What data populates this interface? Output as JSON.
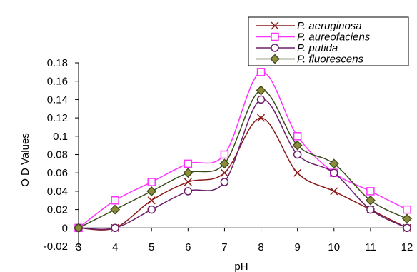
{
  "chart_data": {
    "type": "line",
    "title": "",
    "xlabel": "pH",
    "ylabel": "O D Values",
    "x": [
      3,
      4,
      5,
      6,
      7,
      8,
      9,
      10,
      11,
      12
    ],
    "xlim": [
      3,
      12
    ],
    "ylim": [
      -0.02,
      0.18
    ],
    "yticks": [
      "-0.02",
      "0",
      "0.02",
      "0.04",
      "0.06",
      "0.08",
      "0.1",
      "0.12",
      "0.14",
      "0.16",
      "0.18"
    ],
    "xticks": [
      "3",
      "4",
      "5",
      "6",
      "7",
      "8",
      "9",
      "10",
      "11",
      "12"
    ],
    "grid": false,
    "legend_position": "top-right",
    "series": [
      {
        "name": "P. aeruginosa",
        "marker": "x",
        "color": "#8B1A1A",
        "values": [
          0,
          0,
          0.03,
          0.05,
          0.06,
          0.12,
          0.06,
          0.04,
          0.02,
          0
        ]
      },
      {
        "name": "P. aureofaciens",
        "marker": "square",
        "color": "#FF33FF",
        "values": [
          0,
          0.03,
          0.05,
          0.07,
          0.08,
          0.17,
          0.1,
          0.06,
          0.04,
          0.02
        ]
      },
      {
        "name": "P. putida",
        "marker": "circle",
        "color": "#6B1F6B",
        "values": [
          0,
          0,
          0.02,
          0.04,
          0.05,
          0.14,
          0.08,
          0.06,
          0.02,
          0
        ]
      },
      {
        "name": "P. fluorescens",
        "marker": "diamond",
        "color": "#3A4A1A",
        "values": [
          0,
          0.02,
          0.04,
          0.06,
          0.07,
          0.15,
          0.09,
          0.07,
          0.03,
          0.01
        ]
      }
    ]
  }
}
